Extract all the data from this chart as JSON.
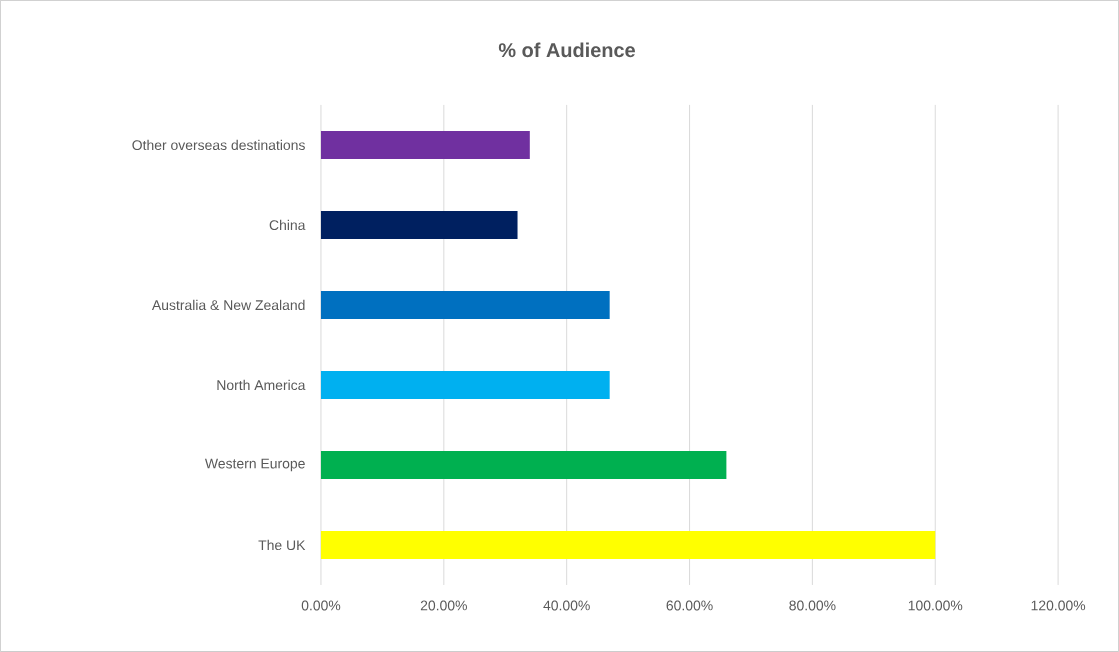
{
  "chart_data": {
    "type": "bar",
    "orientation": "horizontal",
    "title": "% of Audience",
    "categories": [
      "Other overseas destinations",
      "China",
      "Australia  & New Zealand",
      "North America",
      "Western Europe",
      "The UK"
    ],
    "values": [
      34,
      32,
      47,
      47,
      66,
      100
    ],
    "colors": [
      "#7030a0",
      "#002060",
      "#0070c0",
      "#00b0f0",
      "#00b050",
      "#ffff00"
    ],
    "xlim": [
      0,
      120
    ],
    "xticks": [
      {
        "value": 0,
        "label": "0.00%"
      },
      {
        "value": 20,
        "label": "20.00%"
      },
      {
        "value": 40,
        "label": "40.00%"
      },
      {
        "value": 60,
        "label": "60.00%"
      },
      {
        "value": 80,
        "label": "80.00%"
      },
      {
        "value": 100,
        "label": "100.00%"
      },
      {
        "value": 120,
        "label": "120.00%"
      }
    ],
    "grid": "x"
  }
}
